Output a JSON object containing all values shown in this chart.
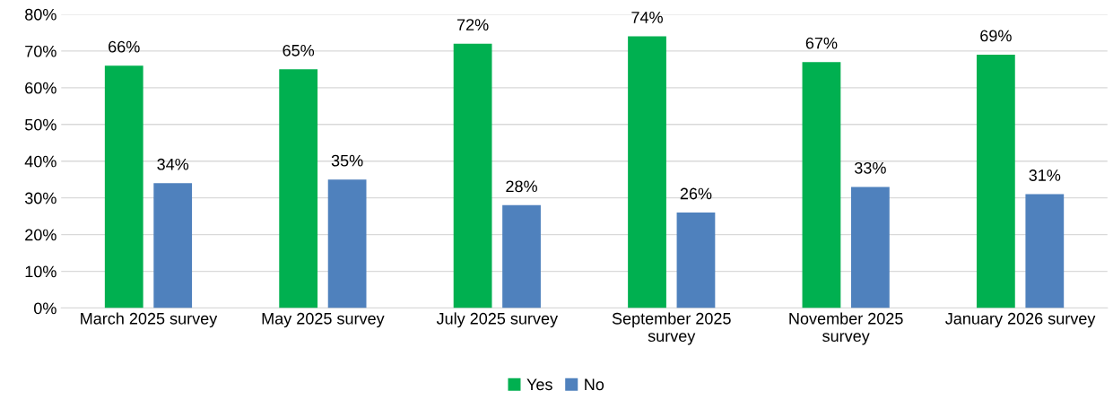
{
  "chart_data": {
    "type": "bar",
    "categories": [
      "March 2025 survey",
      "May 2025 survey",
      "July 2025 survey",
      "September 2025\nsurvey",
      "November 2025\nsurvey",
      "January 2026 survey"
    ],
    "series": [
      {
        "name": "Yes",
        "color": "#00b050",
        "values": [
          66,
          65,
          72,
          74,
          67,
          69
        ],
        "value_labels": [
          "66%",
          "65%",
          "72%",
          "74%",
          "67%",
          "69%"
        ]
      },
      {
        "name": "No",
        "color": "#4f81bd",
        "values": [
          34,
          35,
          28,
          26,
          33,
          31
        ],
        "value_labels": [
          "34%",
          "35%",
          "28%",
          "26%",
          "33%",
          "31%"
        ]
      }
    ],
    "ylim": [
      0,
      80
    ],
    "yticks": [
      {
        "value": 0,
        "label": "0%"
      },
      {
        "value": 10,
        "label": "10%"
      },
      {
        "value": 20,
        "label": "20%"
      },
      {
        "value": 30,
        "label": "30%"
      },
      {
        "value": 40,
        "label": "40%"
      },
      {
        "value": 50,
        "label": "50%"
      },
      {
        "value": 60,
        "label": "60%"
      },
      {
        "value": 70,
        "label": "70%"
      },
      {
        "value": 80,
        "label": "80%"
      }
    ],
    "grid": "y",
    "legend": "bottom"
  }
}
